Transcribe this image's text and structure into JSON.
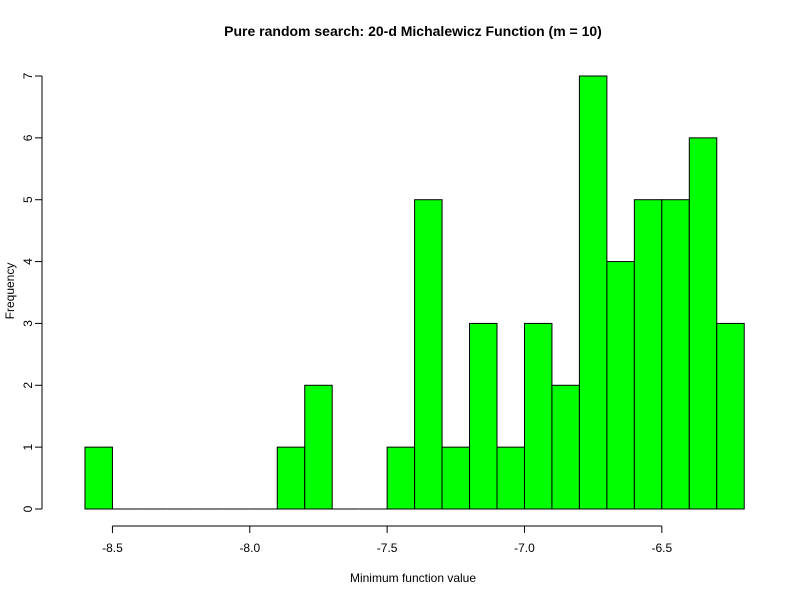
{
  "chart_data": {
    "type": "bar",
    "title": "Pure random search: 20-d Michalewicz Function (m = 10)",
    "xlabel": "Minimum function value",
    "ylabel": "Frequency",
    "bin_width": 0.1,
    "bins": [
      {
        "start": -8.6,
        "end": -8.5,
        "count": 1
      },
      {
        "start": -8.5,
        "end": -8.4,
        "count": 0
      },
      {
        "start": -8.4,
        "end": -8.3,
        "count": 0
      },
      {
        "start": -8.3,
        "end": -8.2,
        "count": 0
      },
      {
        "start": -8.2,
        "end": -8.1,
        "count": 0
      },
      {
        "start": -8.1,
        "end": -8.0,
        "count": 0
      },
      {
        "start": -8.0,
        "end": -7.9,
        "count": 0
      },
      {
        "start": -7.9,
        "end": -7.8,
        "count": 1
      },
      {
        "start": -7.8,
        "end": -7.7,
        "count": 2
      },
      {
        "start": -7.7,
        "end": -7.6,
        "count": 0
      },
      {
        "start": -7.6,
        "end": -7.5,
        "count": 0
      },
      {
        "start": -7.5,
        "end": -7.4,
        "count": 1
      },
      {
        "start": -7.4,
        "end": -7.3,
        "count": 5
      },
      {
        "start": -7.3,
        "end": -7.2,
        "count": 1
      },
      {
        "start": -7.2,
        "end": -7.1,
        "count": 3
      },
      {
        "start": -7.1,
        "end": -7.0,
        "count": 1
      },
      {
        "start": -7.0,
        "end": -6.9,
        "count": 3
      },
      {
        "start": -6.9,
        "end": -6.8,
        "count": 2
      },
      {
        "start": -6.8,
        "end": -6.7,
        "count": 7
      },
      {
        "start": -6.7,
        "end": -6.6,
        "count": 4
      },
      {
        "start": -6.6,
        "end": -6.5,
        "count": 5
      },
      {
        "start": -6.5,
        "end": -6.4,
        "count": 5
      },
      {
        "start": -6.4,
        "end": -6.3,
        "count": 6
      },
      {
        "start": -6.3,
        "end": -6.2,
        "count": 3
      }
    ],
    "xlim": [
      -8.6,
      -6.2
    ],
    "ylim": [
      0,
      7
    ],
    "x_ticks": [
      -8.5,
      -8.0,
      -7.5,
      -7.0,
      -6.5
    ],
    "x_tick_labels": [
      "-8.5",
      "-8.0",
      "-7.5",
      "-7.0",
      "-6.5"
    ],
    "y_ticks": [
      0,
      1,
      2,
      3,
      4,
      5,
      6,
      7
    ],
    "y_tick_labels": [
      "0",
      "1",
      "2",
      "3",
      "4",
      "5",
      "6",
      "7"
    ],
    "colors": {
      "bar_fill": "#00ff00",
      "bar_stroke": "#000000",
      "axis": "#000000"
    },
    "grid": false,
    "legend": "none"
  }
}
